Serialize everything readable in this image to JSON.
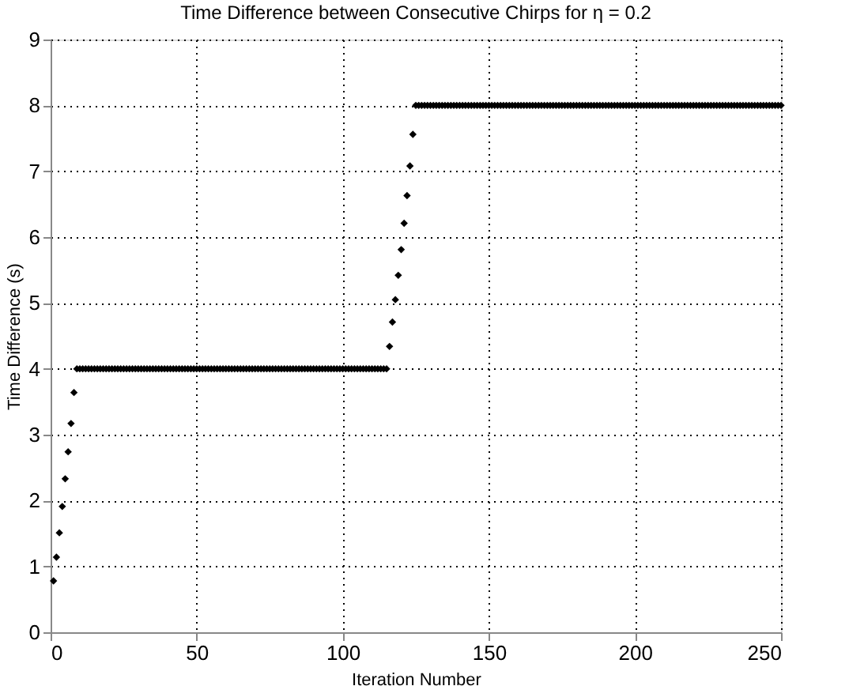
{
  "chart_data": {
    "type": "scatter",
    "title": "Time Difference between Consecutive Chirps for η = 0.2",
    "xlabel": "Iteration Number",
    "ylabel": "Time Difference (s)",
    "xlim": [
      0,
      250
    ],
    "xticks": [
      0,
      50,
      100,
      150,
      200,
      250
    ],
    "ylim": [
      0,
      9
    ],
    "yticks": [
      0,
      1,
      2,
      3,
      4,
      5,
      6,
      7,
      8,
      9
    ],
    "grid": true,
    "marker": "diamond",
    "legend": false,
    "x": [
      1,
      2,
      3,
      4,
      5,
      6,
      7,
      8,
      9,
      10,
      11,
      12,
      13,
      14,
      15,
      16,
      17,
      18,
      19,
      20,
      21,
      22,
      23,
      24,
      25,
      26,
      27,
      28,
      29,
      30,
      31,
      32,
      33,
      34,
      35,
      36,
      37,
      38,
      39,
      40,
      41,
      42,
      43,
      44,
      45,
      46,
      47,
      48,
      49,
      50,
      51,
      52,
      53,
      54,
      55,
      56,
      57,
      58,
      59,
      60,
      61,
      62,
      63,
      64,
      65,
      66,
      67,
      68,
      69,
      70,
      71,
      72,
      73,
      74,
      75,
      76,
      77,
      78,
      79,
      80,
      81,
      82,
      83,
      84,
      85,
      86,
      87,
      88,
      89,
      90,
      91,
      92,
      93,
      94,
      95,
      96,
      97,
      98,
      99,
      100,
      101,
      102,
      103,
      104,
      105,
      106,
      107,
      108,
      109,
      110,
      111,
      112,
      113,
      114,
      115,
      116,
      117,
      118,
      119,
      120,
      121,
      122,
      123,
      124,
      125,
      126,
      127,
      128,
      129,
      130,
      131,
      132,
      133,
      134,
      135,
      136,
      137,
      138,
      139,
      140,
      141,
      142,
      143,
      144,
      145,
      146,
      147,
      148,
      149,
      150,
      151,
      152,
      153,
      154,
      155,
      156,
      157,
      158,
      159,
      160,
      161,
      162,
      163,
      164,
      165,
      166,
      167,
      168,
      169,
      170,
      171,
      172,
      173,
      174,
      175,
      176,
      177,
      178,
      179,
      180,
      181,
      182,
      183,
      184,
      185,
      186,
      187,
      188,
      189,
      190,
      191,
      192,
      193,
      194,
      195,
      196,
      197,
      198,
      199,
      200,
      201,
      202,
      203,
      204,
      205,
      206,
      207,
      208,
      209,
      210,
      211,
      212,
      213,
      214,
      215,
      216,
      217,
      218,
      219,
      220,
      221,
      222,
      223,
      224,
      225,
      226,
      227,
      228,
      229,
      230,
      231,
      232,
      233,
      234,
      235,
      236,
      237,
      238,
      239,
      240,
      241,
      242,
      243,
      244,
      245,
      246,
      247,
      248,
      249,
      250
    ],
    "series": [
      {
        "color": "#000000",
        "values": [
          0.78,
          1.14,
          1.51,
          1.91,
          2.33,
          2.74,
          3.17,
          3.64,
          4,
          4,
          4,
          4,
          4,
          4,
          4,
          4,
          4,
          4,
          4,
          4,
          4,
          4,
          4,
          4,
          4,
          4,
          4,
          4,
          4,
          4,
          4,
          4,
          4,
          4,
          4,
          4,
          4,
          4,
          4,
          4,
          4,
          4,
          4,
          4,
          4,
          4,
          4,
          4,
          4,
          4,
          4,
          4,
          4,
          4,
          4,
          4,
          4,
          4,
          4,
          4,
          4,
          4,
          4,
          4,
          4,
          4,
          4,
          4,
          4,
          4,
          4,
          4,
          4,
          4,
          4,
          4,
          4,
          4,
          4,
          4,
          4,
          4,
          4,
          4,
          4,
          4,
          4,
          4,
          4,
          4,
          4,
          4,
          4,
          4,
          4,
          4,
          4,
          4,
          4,
          4,
          4,
          4,
          4,
          4,
          4,
          4,
          4,
          4,
          4,
          4,
          4,
          4,
          4,
          4,
          4,
          4.34,
          4.71,
          5.05,
          5.42,
          5.81,
          6.21,
          6.63,
          7.08,
          7.56,
          8,
          8,
          8,
          8,
          8,
          8,
          8,
          8,
          8,
          8,
          8,
          8,
          8,
          8,
          8,
          8,
          8,
          8,
          8,
          8,
          8,
          8,
          8,
          8,
          8,
          8,
          8,
          8,
          8,
          8,
          8,
          8,
          8,
          8,
          8,
          8,
          8,
          8,
          8,
          8,
          8,
          8,
          8,
          8,
          8,
          8,
          8,
          8,
          8,
          8,
          8,
          8,
          8,
          8,
          8,
          8,
          8,
          8,
          8,
          8,
          8,
          8,
          8,
          8,
          8,
          8,
          8,
          8,
          8,
          8,
          8,
          8,
          8,
          8,
          8,
          8,
          8,
          8,
          8,
          8,
          8,
          8,
          8,
          8,
          8,
          8,
          8,
          8,
          8,
          8,
          8,
          8,
          8,
          8,
          8,
          8,
          8,
          8,
          8,
          8,
          8,
          8,
          8,
          8,
          8,
          8,
          8,
          8,
          8,
          8,
          8,
          8,
          8,
          8,
          8,
          8,
          8,
          8,
          8,
          8,
          8,
          8,
          8,
          8,
          8,
          8
        ]
      }
    ]
  }
}
